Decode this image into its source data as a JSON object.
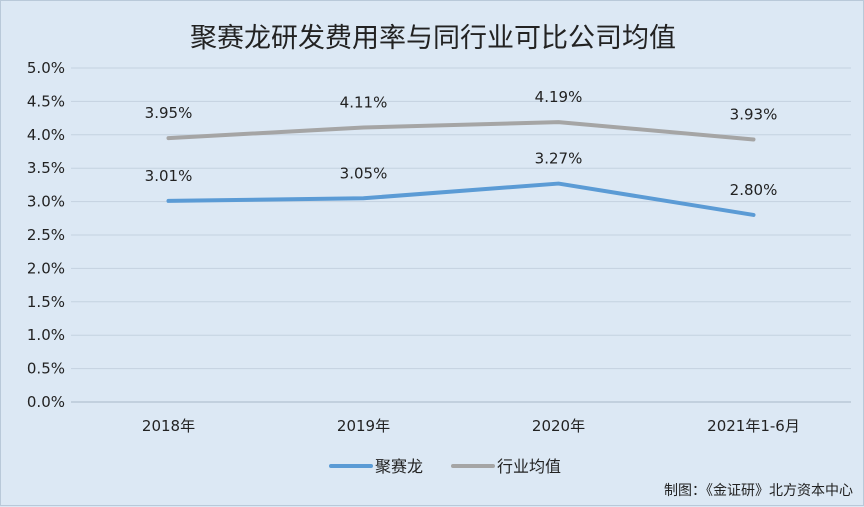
{
  "chart_data": {
    "type": "line",
    "title": "聚赛龙研发费用率与同行业可比公司均值",
    "categories": [
      "2018年",
      "2019年",
      "2020年",
      "2021年1-6月"
    ],
    "series": [
      {
        "name": "聚赛龙",
        "values": [
          3.01,
          3.05,
          3.27,
          2.8
        ],
        "labels": [
          "3.01%",
          "3.05%",
          "3.27%",
          "2.80%"
        ],
        "color": "#5b9bd5"
      },
      {
        "name": "行业均值",
        "values": [
          3.95,
          4.11,
          4.19,
          3.93
        ],
        "labels": [
          "3.95%",
          "4.11%",
          "4.19%",
          "3.93%"
        ],
        "color": "#a5a5a5"
      }
    ],
    "yticks": [
      "0.0%",
      "0.5%",
      "1.0%",
      "1.5%",
      "2.0%",
      "2.5%",
      "3.0%",
      "3.5%",
      "4.0%",
      "4.5%",
      "5.0%"
    ],
    "ylim": [
      0,
      5
    ],
    "grid": true,
    "legend_position": "bottom",
    "credit": "制图：《金证研》北方资本中心"
  }
}
